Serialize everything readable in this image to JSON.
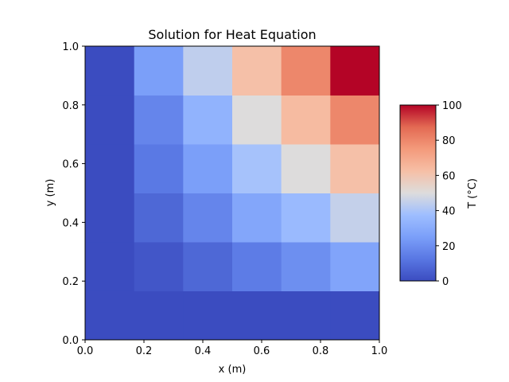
{
  "chart_data": {
    "type": "heatmap",
    "title": "Solution for Heat Equation",
    "xlabel": "x (m)",
    "ylabel": "y (m)",
    "xlim": [
      0.0,
      1.0
    ],
    "ylim": [
      0.0,
      1.0
    ],
    "x_tick_labels": [
      "0.0",
      "0.2",
      "0.4",
      "0.6",
      "0.8",
      "1.0"
    ],
    "y_tick_labels": [
      "0.0",
      "0.2",
      "0.4",
      "0.6",
      "0.8",
      "1.0"
    ],
    "x_ticks": [
      0.0,
      0.2,
      0.4,
      0.6,
      0.8,
      1.0
    ],
    "y_ticks": [
      0.0,
      0.2,
      0.4,
      0.6,
      0.8,
      1.0
    ],
    "colormap": "coolwarm",
    "grid": false,
    "x_edges": [
      0.0,
      0.1667,
      0.3333,
      0.5,
      0.6667,
      0.8333,
      1.0
    ],
    "y_edges": [
      0.0,
      0.1667,
      0.3333,
      0.5,
      0.6667,
      0.8333,
      1.0
    ],
    "values_rows_bottom_to_top": [
      [
        0,
        0,
        0,
        0,
        0,
        0
      ],
      [
        0,
        3,
        8,
        14,
        20,
        27
      ],
      [
        0,
        8,
        17,
        28,
        36,
        45
      ],
      [
        0,
        13,
        25,
        39,
        50,
        62
      ],
      [
        0,
        17,
        33,
        50,
        64,
        80
      ],
      [
        0,
        25,
        44,
        62,
        80,
        100
      ]
    ],
    "colorbar": {
      "label": "T (°C)",
      "min": 0,
      "max": 100,
      "tick_values": [
        0,
        20,
        40,
        60,
        80,
        100
      ],
      "tick_labels": [
        "0",
        "20",
        "40",
        "60",
        "80",
        "100"
      ]
    }
  }
}
